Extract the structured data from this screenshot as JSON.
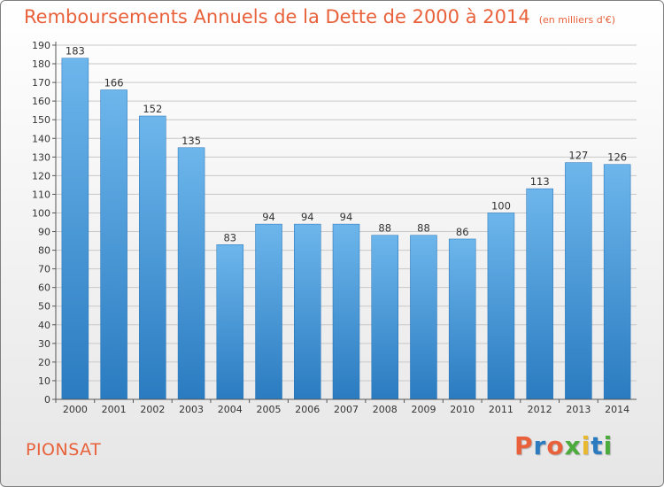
{
  "title": "Remboursements Annuels de la Dette de 2000 à 2014",
  "subtitle": "(en milliers d'€)",
  "commune": "PIONSAT",
  "brand": "Proxiti",
  "colors": {
    "accent": "#e8613a",
    "bar_top": "#6db6ec",
    "bar_bottom": "#2a7bc0",
    "bar_edge": "#1e6fb5",
    "logo_letters": [
      "#e8613a",
      "#2a7bc0",
      "#e8613a",
      "#4bab3b",
      "#e8b82e",
      "#2a7bc0",
      "#4bab3b"
    ]
  },
  "chart_data": {
    "type": "bar",
    "title": "Remboursements Annuels de la Dette de 2000 à 2014",
    "subtitle": "(en milliers d'€)",
    "categories": [
      "2000",
      "2001",
      "2002",
      "2003",
      "2004",
      "2005",
      "2006",
      "2007",
      "2008",
      "2009",
      "2010",
      "2011",
      "2012",
      "2013",
      "2014"
    ],
    "values": [
      183,
      166,
      152,
      135,
      83,
      94,
      94,
      94,
      88,
      88,
      86,
      100,
      113,
      127,
      126
    ],
    "y_ticks": [
      0,
      10,
      20,
      30,
      40,
      50,
      60,
      70,
      80,
      90,
      100,
      110,
      120,
      130,
      140,
      150,
      160,
      170,
      180,
      190
    ],
    "ylim": [
      0,
      190
    ],
    "xlabel": "",
    "ylabel": "",
    "grid": true
  }
}
